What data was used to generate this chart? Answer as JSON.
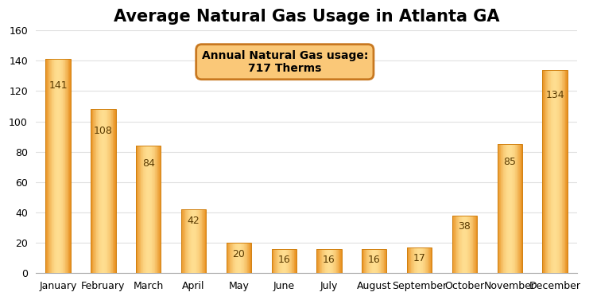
{
  "title": "Average Natural Gas Usage in Atlanta GA",
  "categories": [
    "January",
    "February",
    "March",
    "April",
    "May",
    "June",
    "July",
    "August",
    "September",
    "October",
    "November",
    "December"
  ],
  "values": [
    141,
    108,
    84,
    42,
    20,
    16,
    16,
    16,
    17,
    38,
    85,
    134
  ],
  "bar_color_left": "#F0A030",
  "bar_color_center": "#FEDD90",
  "bar_color_right": "#E89020",
  "bar_edge_color": "#D08010",
  "ylim": [
    0,
    160
  ],
  "yticks": [
    0,
    20,
    40,
    60,
    80,
    100,
    120,
    140,
    160
  ],
  "annotation_text": "Annual Natural Gas usage:\n717 Therms",
  "annotation_box_facecolor": "#FAC878",
  "annotation_box_edgecolor": "#C87820",
  "background_color": "#FFFFFF",
  "grid_color": "#E0E0E0",
  "title_fontsize": 15,
  "tick_fontsize": 9,
  "value_fontsize": 9,
  "value_color": "#5A3A00",
  "bar_width": 0.55
}
